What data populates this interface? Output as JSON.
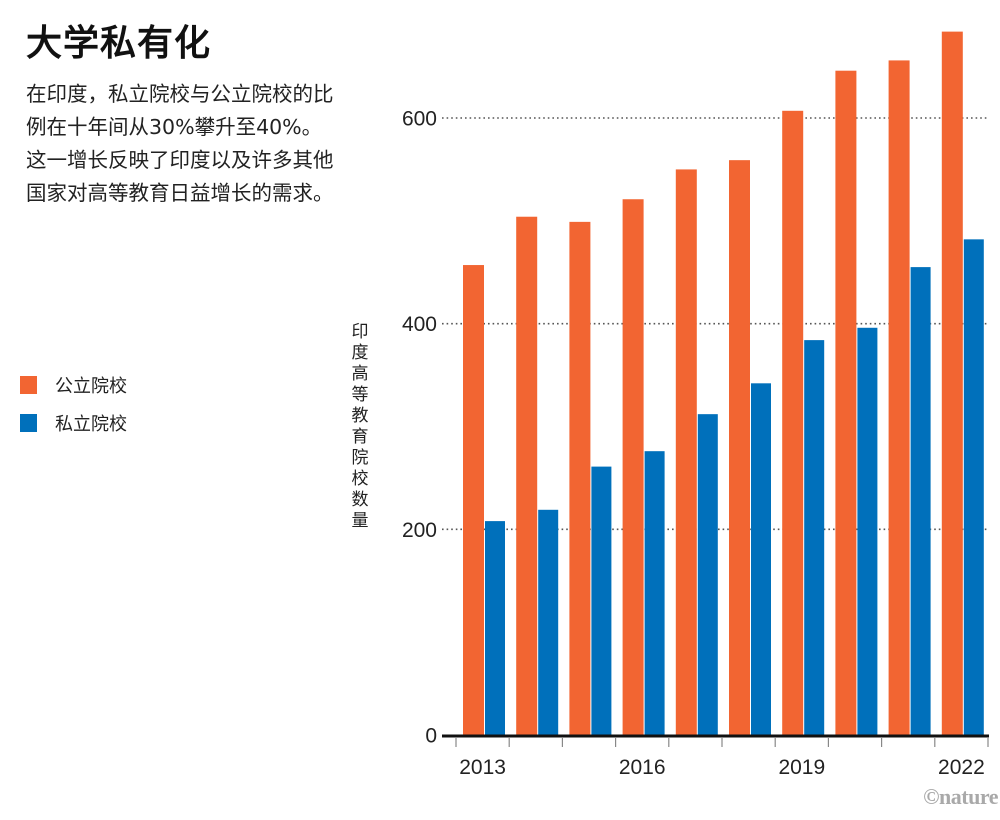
{
  "header": {
    "title": "大学私有化",
    "description": "在印度，私立院校与公立院校的比例在十年间从30%攀升至40%。这一增长反映了印度以及许多其他国家对高等教育日益增长的需求。"
  },
  "legend": [
    {
      "label": "公立院校",
      "color": "#F26532"
    },
    {
      "label": "私立院校",
      "color": "#0070BB"
    }
  ],
  "credit": "©nature",
  "chart_data": {
    "type": "bar",
    "title": "大学私有化",
    "xlabel": "",
    "ylabel": "印度高等教育院校数量",
    "categories": [
      "2013",
      "2014",
      "2015",
      "2016",
      "2017",
      "2018",
      "2019",
      "2020",
      "2021",
      "2022"
    ],
    "x_tick_labels": [
      "2013",
      "2016",
      "2019",
      "2022"
    ],
    "series": [
      {
        "name": "公立院校",
        "color": "#F26532",
        "values": [
          457,
          504,
          499,
          521,
          550,
          559,
          607,
          646,
          656,
          684
        ]
      },
      {
        "name": "私立院校",
        "color": "#0070BB",
        "values": [
          208,
          219,
          261,
          276,
          312,
          342,
          384,
          396,
          455,
          482
        ]
      }
    ],
    "yticks": [
      0,
      200,
      400,
      600
    ],
    "ylim": [
      0,
      600
    ],
    "grid": "horizontal-dotted",
    "legend_position": "left"
  }
}
